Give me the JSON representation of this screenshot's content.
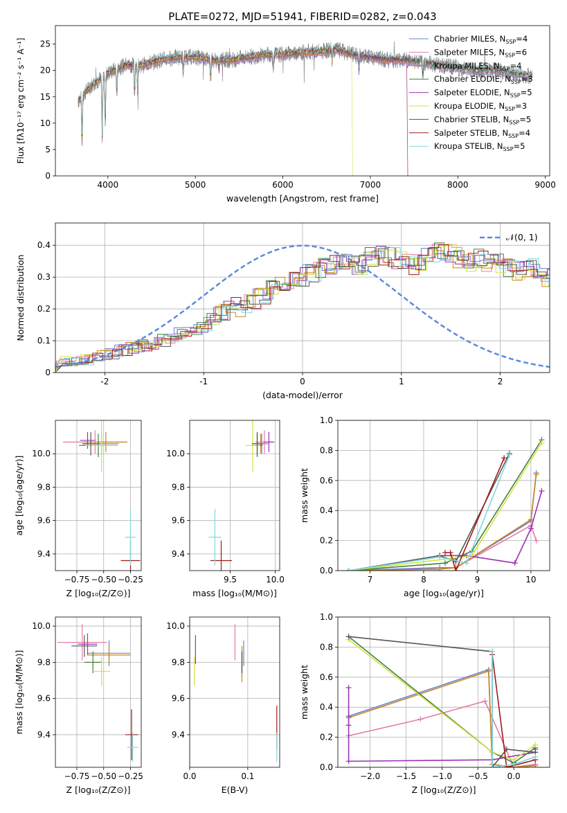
{
  "figure": {
    "title": "PLATE=0272, MJD=51941, FIBERID=0282, z=0.043"
  },
  "series_styles": [
    {
      "name": "Chabrier MILES",
      "nssp": "4",
      "color": "#6b7fd6"
    },
    {
      "name": "Salpeter MILES",
      "nssp": "6",
      "color": "#e47ba6"
    },
    {
      "name": "Kroupa MILES",
      "nssp": "4",
      "color": "#c8861e"
    },
    {
      "name": "Chabrier ELODIE",
      "nssp": "3",
      "color": "#3f7f3f"
    },
    {
      "name": "Salpeter ELODIE",
      "nssp": "5",
      "color": "#9a32b0"
    },
    {
      "name": "Kroupa ELODIE",
      "nssp": "3",
      "color": "#d6e040"
    },
    {
      "name": "Chabrier STELIB",
      "nssp": "5",
      "color": "#555555"
    },
    {
      "name": "Salpeter STELIB",
      "nssp": "4",
      "color": "#a01818"
    },
    {
      "name": "Kroupa STELIB",
      "nssp": "5",
      "color": "#7fd8e0"
    }
  ],
  "chart_data": [
    {
      "id": "spectrum",
      "type": "line",
      "title": "PLATE=0272, MJD=51941, FIBERID=0282, z=0.043",
      "xlabel": "wavelength [Angstrom, rest frame]",
      "ylabel": "Flux [fλ10⁻¹⁷ erg cm⁻² s⁻¹ A⁻¹]",
      "xlim": [
        3400,
        9050
      ],
      "ylim": [
        0,
        28.5
      ],
      "xticks": [
        4000,
        5000,
        6000,
        7000,
        8000,
        9000
      ],
      "yticks": [
        0,
        5,
        10,
        15,
        20,
        25
      ],
      "legend_position": "top-right",
      "continuum": {
        "x": [
          3650,
          3800,
          4000,
          4200,
          4400,
          4600,
          4800,
          5000,
          5200,
          5400,
          5600,
          5800,
          6000,
          6200,
          6400,
          6600,
          6800,
          7000,
          7200,
          7400,
          7600,
          7800,
          8000,
          8200,
          8400,
          8600,
          8800
        ],
        "y": [
          14,
          17,
          19.5,
          21,
          21,
          22,
          22.5,
          22.5,
          22,
          22,
          22.5,
          23,
          23,
          23.5,
          23.5,
          24,
          23,
          22.5,
          22,
          22,
          21.5,
          21,
          20.5,
          20,
          20,
          19.5,
          19
        ]
      },
      "absorption_lines": [
        {
          "x": 3705,
          "depth": 10
        },
        {
          "x": 3935,
          "depth": 12
        },
        {
          "x": 3970,
          "depth": 9
        },
        {
          "x": 4102,
          "depth": 5
        },
        {
          "x": 4305,
          "depth": 6
        },
        {
          "x": 4340,
          "depth": 5
        },
        {
          "x": 4861,
          "depth": 3
        },
        {
          "x": 5175,
          "depth": 4
        },
        {
          "x": 5270,
          "depth": 2
        },
        {
          "x": 5890,
          "depth": 3
        },
        {
          "x": 6563,
          "depth": 2
        },
        {
          "x": 6870,
          "depth": 3
        },
        {
          "x": 7600,
          "depth": 3
        }
      ]
    },
    {
      "id": "residuals",
      "type": "line",
      "xlabel": "(data-model)/error",
      "ylabel": "Normed distribution",
      "xlim": [
        -2.5,
        2.5
      ],
      "ylim": [
        0,
        0.47
      ],
      "xticks": [
        -2,
        -1,
        0,
        1,
        2
      ],
      "yticks": [
        0.0,
        0.1,
        0.2,
        0.3,
        0.4
      ],
      "legend": [
        {
          "label": "𝒩(0, 1)",
          "style": "dashed",
          "color": "#5b8ad8"
        }
      ],
      "histogram_bin_width": 0.1,
      "histogram_start": -2.5,
      "histogram_mean_shape": [
        0.035,
        0.032,
        0.04,
        0.05,
        0.055,
        0.06,
        0.07,
        0.08,
        0.085,
        0.09,
        0.1,
        0.11,
        0.12,
        0.13,
        0.15,
        0.17,
        0.19,
        0.21,
        0.2,
        0.22,
        0.24,
        0.26,
        0.27,
        0.29,
        0.3,
        0.31,
        0.33,
        0.34,
        0.35,
        0.35,
        0.34,
        0.36,
        0.37,
        0.36,
        0.35,
        0.34,
        0.35,
        0.37,
        0.38,
        0.37,
        0.36,
        0.35,
        0.36,
        0.35,
        0.34,
        0.33,
        0.32,
        0.33,
        0.31,
        0.3,
        0.29,
        0.27,
        0.26,
        0.24,
        0.23,
        0.21,
        0.2,
        0.18,
        0.16,
        0.15,
        0.13,
        0.12,
        0.11,
        0.1,
        0.09,
        0.08,
        0.08,
        0.07,
        0.07,
        0.06,
        0.06,
        0.06,
        0.05,
        0.05,
        0.04,
        0.04,
        0.04,
        0.04,
        0.035,
        0.03
      ]
    },
    {
      "id": "age-vs-Z",
      "type": "scatter",
      "xlabel": "Z [log₁₀(Z/Z⊙)]",
      "ylabel": "age  [log₁₀(age/yr)]",
      "xlim": [
        -0.95,
        -0.15
      ],
      "ylim": [
        9.3,
        10.2
      ],
      "xticks": [
        -0.75,
        -0.5,
        -0.25
      ],
      "xticklabels": [
        "−0.75",
        "−0.50",
        "−0.25"
      ],
      "yticks": [
        9.4,
        9.6,
        9.8,
        10.0
      ],
      "yticklabels": [
        "9.4",
        "9.6",
        "9.8",
        "10.0"
      ],
      "points": [
        {
          "s": 0,
          "x": -0.52,
          "y": 10.06,
          "xe": 0.16,
          "ye": 0.06
        },
        {
          "s": 1,
          "x": -0.58,
          "y": 10.07,
          "xe": 0.3,
          "ye": 0.07
        },
        {
          "s": 2,
          "x": -0.48,
          "y": 10.07,
          "xe": 0.2,
          "ye": 0.06
        },
        {
          "s": 3,
          "x": -0.55,
          "y": 10.05,
          "xe": 0.18,
          "ye": 0.07
        },
        {
          "s": 4,
          "x": -0.65,
          "y": 10.08,
          "xe": 0.07,
          "ye": 0.05
        },
        {
          "s": 5,
          "x": -0.52,
          "y": 10.05,
          "xe": 0.15,
          "ye": 0.16
        },
        {
          "s": 6,
          "x": -0.62,
          "y": 10.06,
          "xe": 0.08,
          "ye": 0.07
        },
        {
          "s": 7,
          "x": -0.25,
          "y": 9.36,
          "xe": 0.09,
          "ye": 0.12
        },
        {
          "s": 8,
          "x": -0.25,
          "y": 9.5,
          "xe": 0.05,
          "ye": 0.17
        }
      ]
    },
    {
      "id": "age-vs-mass",
      "type": "scatter",
      "xlabel": "mass [log₁₀(M/M⊙)]",
      "xlim": [
        9.05,
        10.05
      ],
      "ylim": [
        9.3,
        10.2
      ],
      "xticks": [
        9.5,
        10.0
      ],
      "xticklabels": [
        "9.5",
        "10.0"
      ],
      "yticks": [
        9.4,
        9.6,
        9.8,
        10.0
      ],
      "yticklabels": [
        "9.4",
        "9.6",
        "9.8",
        "10.0"
      ],
      "points": [
        {
          "s": 0,
          "x": 9.85,
          "y": 10.06,
          "xe": 0.07,
          "ye": 0.06
        },
        {
          "s": 1,
          "x": 9.88,
          "y": 10.07,
          "xe": 0.1,
          "ye": 0.07
        },
        {
          "s": 2,
          "x": 9.84,
          "y": 10.06,
          "xe": 0.05,
          "ye": 0.06
        },
        {
          "s": 3,
          "x": 9.8,
          "y": 10.05,
          "xe": 0.06,
          "ye": 0.07
        },
        {
          "s": 4,
          "x": 9.93,
          "y": 10.07,
          "xe": 0.06,
          "ye": 0.06
        },
        {
          "s": 5,
          "x": 9.75,
          "y": 10.05,
          "xe": 0.08,
          "ye": 0.16
        },
        {
          "s": 6,
          "x": 9.8,
          "y": 10.06,
          "xe": 0.06,
          "ye": 0.07
        },
        {
          "s": 7,
          "x": 9.4,
          "y": 9.36,
          "xe": 0.12,
          "ye": 0.12
        },
        {
          "s": 8,
          "x": 9.33,
          "y": 9.5,
          "xe": 0.07,
          "ye": 0.17
        }
      ]
    },
    {
      "id": "weight-vs-age",
      "type": "line",
      "xlabel": "age  [log₁₀(age/yr)]",
      "ylabel": "mass weight",
      "xlim": [
        6.4,
        10.35
      ],
      "ylim": [
        0,
        1.0
      ],
      "xticks": [
        7,
        8,
        9,
        10
      ],
      "xticklabels": [
        "7",
        "8",
        "9",
        "10"
      ],
      "yticks": [
        0,
        0.2,
        0.4,
        0.6,
        0.8,
        1.0
      ],
      "yticklabels": [
        "0.0",
        "0.2",
        "0.4",
        "0.6",
        "0.8",
        "1.0"
      ],
      "series": [
        {
          "s": 0,
          "x": [
            6.6,
            8.3,
            8.6,
            10.0,
            10.1
          ],
          "y": [
            0.0,
            0.02,
            0.02,
            0.33,
            0.65
          ]
        },
        {
          "s": 1,
          "x": [
            6.6,
            8.3,
            8.6,
            10.0,
            10.1
          ],
          "y": [
            0.0,
            0.01,
            0.02,
            0.3,
            0.2
          ]
        },
        {
          "s": 2,
          "x": [
            6.6,
            8.3,
            8.6,
            10.0,
            10.1
          ],
          "y": [
            0.0,
            0.01,
            0.02,
            0.34,
            0.64
          ]
        },
        {
          "s": 3,
          "x": [
            6.6,
            8.4,
            8.9,
            10.2
          ],
          "y": [
            0.0,
            0.05,
            0.13,
            0.87
          ]
        },
        {
          "s": 4,
          "x": [
            8.3,
            8.8,
            9.7,
            10.0,
            10.2
          ],
          "y": [
            0.1,
            0.1,
            0.05,
            0.28,
            0.53
          ]
        },
        {
          "s": 5,
          "x": [
            6.6,
            8.5,
            8.9,
            10.2
          ],
          "y": [
            0.0,
            0.08,
            0.1,
            0.85
          ]
        },
        {
          "s": 6,
          "x": [
            6.6,
            8.3,
            8.6,
            9.6
          ],
          "y": [
            0.0,
            0.1,
            0.06,
            0.78
          ]
        },
        {
          "s": 7,
          "x": [
            8.4,
            8.5,
            8.6,
            9.5
          ],
          "y": [
            0.12,
            0.12,
            0.0,
            0.75
          ]
        },
        {
          "s": 8,
          "x": [
            6.6,
            8.3,
            8.8,
            9.6
          ],
          "y": [
            0.0,
            0.09,
            0.05,
            0.77
          ]
        }
      ]
    },
    {
      "id": "mass-vs-Z",
      "type": "scatter",
      "xlabel": "Z [log₁₀(Z/Z⊙)]",
      "ylabel": "mass [log₁₀(M/M⊙)]",
      "xlim": [
        -0.95,
        -0.15
      ],
      "ylim": [
        9.22,
        10.05
      ],
      "xticks": [
        -0.75,
        -0.5,
        -0.25
      ],
      "xticklabels": [
        "−0.75",
        "−0.50",
        "−0.25"
      ],
      "yticks": [
        9.4,
        9.6,
        9.8,
        10.0
      ],
      "yticklabels": [
        "9.4",
        "9.6",
        "9.8",
        "10.0"
      ],
      "points": [
        {
          "s": 0,
          "x": -0.45,
          "y": 9.85,
          "xe": 0.2,
          "ye": 0.07
        },
        {
          "s": 1,
          "x": -0.7,
          "y": 9.91,
          "xe": 0.23,
          "ye": 0.1
        },
        {
          "s": 2,
          "x": -0.45,
          "y": 9.84,
          "xe": 0.2,
          "ye": 0.05
        },
        {
          "s": 3,
          "x": -0.6,
          "y": 9.8,
          "xe": 0.08,
          "ye": 0.06
        },
        {
          "s": 4,
          "x": -0.65,
          "y": 9.9,
          "xe": 0.09,
          "ye": 0.06
        },
        {
          "s": 5,
          "x": -0.52,
          "y": 9.75,
          "xe": 0.08,
          "ye": 0.08
        },
        {
          "s": 6,
          "x": -0.68,
          "y": 9.89,
          "xe": 0.12,
          "ye": 0.06
        },
        {
          "s": 7,
          "x": -0.24,
          "y": 9.4,
          "xe": 0.06,
          "ye": 0.14
        },
        {
          "s": 8,
          "x": -0.23,
          "y": 9.33,
          "xe": 0.05,
          "ye": 0.08
        }
      ]
    },
    {
      "id": "mass-vs-ebv",
      "type": "scatter",
      "xlabel": "E(B-V)",
      "xlim": [
        0.0,
        0.155
      ],
      "ylim": [
        9.22,
        10.05
      ],
      "xticks": [
        0.0,
        0.1
      ],
      "xticklabels": [
        "0.0",
        "0.1"
      ],
      "yticks": [
        9.4,
        9.6,
        9.8,
        10.0
      ],
      "yticklabels": [
        "9.4",
        "9.6",
        "9.8",
        "10.0"
      ],
      "points": [
        {
          "s": 0,
          "x": 0.093,
          "y": 9.85,
          "xe": 0,
          "ye": 0.07
        },
        {
          "s": 1,
          "x": 0.078,
          "y": 9.91,
          "xe": 0,
          "ye": 0.1
        },
        {
          "s": 2,
          "x": 0.09,
          "y": 9.79,
          "xe": 0,
          "ye": 0.1
        },
        {
          "s": 3,
          "x": 0.09,
          "y": 9.8,
          "xe": 0,
          "ye": 0.06
        },
        {
          "s": 4,
          "x": 0.01,
          "y": 9.87,
          "xe": 0,
          "ye": 0.08
        },
        {
          "s": 5,
          "x": 0.008,
          "y": 9.75,
          "xe": 0,
          "ye": 0.08
        },
        {
          "s": 6,
          "x": 0.09,
          "y": 9.8,
          "xe": 0,
          "ye": 0.06
        },
        {
          "s": 7,
          "x": 0.15,
          "y": 9.44,
          "xe": 0,
          "ye": 0.12
        },
        {
          "s": 8,
          "x": 0.15,
          "y": 9.33,
          "xe": 0,
          "ye": 0.08
        }
      ]
    },
    {
      "id": "weight-vs-Z",
      "type": "line",
      "xlabel": "Z [log₁₀(Z/Z⊙)]",
      "ylabel": "mass weight",
      "xlim": [
        -2.45,
        0.5
      ],
      "ylim": [
        0,
        1.0
      ],
      "xticks": [
        -2.0,
        -1.5,
        -1.0,
        -0.5,
        0.0
      ],
      "xticklabels": [
        "−2.0",
        "−1.5",
        "−1.0",
        "−0.5",
        "0.0"
      ],
      "yticks": [
        0,
        0.2,
        0.4,
        0.6,
        0.8,
        1.0
      ],
      "yticklabels": [
        "0.0",
        "0.2",
        "0.4",
        "0.6",
        "0.8",
        "1.0"
      ],
      "series": [
        {
          "s": 0,
          "x": [
            -2.3,
            -0.35,
            -0.3,
            0.0,
            0.3
          ],
          "y": [
            0.34,
            0.65,
            0.02,
            0.0,
            0.02
          ]
        },
        {
          "s": 1,
          "x": [
            -2.3,
            -1.3,
            -0.4,
            0.0,
            0.3
          ],
          "y": [
            0.21,
            0.32,
            0.44,
            0.0,
            0.02
          ]
        },
        {
          "s": 2,
          "x": [
            -2.3,
            -0.35,
            -0.3,
            0.0,
            0.3
          ],
          "y": [
            0.33,
            0.64,
            0.02,
            0.0,
            0.01
          ]
        },
        {
          "s": 3,
          "x": [
            -2.3,
            -0.3,
            0.0,
            0.3
          ],
          "y": [
            0.87,
            0.1,
            0.03,
            0.13
          ]
        },
        {
          "s": 4,
          "x": [
            -2.3,
            -2.3,
            -2.3,
            -0.3,
            0.3,
            0.3
          ],
          "y": [
            0.53,
            0.28,
            0.04,
            0.05,
            0.1,
            0.12
          ]
        },
        {
          "s": 5,
          "x": [
            -2.3,
            -0.3,
            0.0,
            0.3
          ],
          "y": [
            0.85,
            0.1,
            0.05,
            0.15
          ]
        },
        {
          "s": 6,
          "x": [
            -2.3,
            -0.3,
            -0.3,
            -0.1,
            0.3
          ],
          "y": [
            0.87,
            0.77,
            0.0,
            0.12,
            0.1
          ]
        },
        {
          "s": 7,
          "x": [
            -0.3,
            -0.1,
            0.3
          ],
          "y": [
            0.75,
            0.0,
            0.05
          ]
        },
        {
          "s": 8,
          "x": [
            -0.3,
            -0.3,
            0.0,
            0.3
          ],
          "y": [
            0.77,
            0.0,
            0.02,
            0.07
          ]
        }
      ]
    }
  ]
}
